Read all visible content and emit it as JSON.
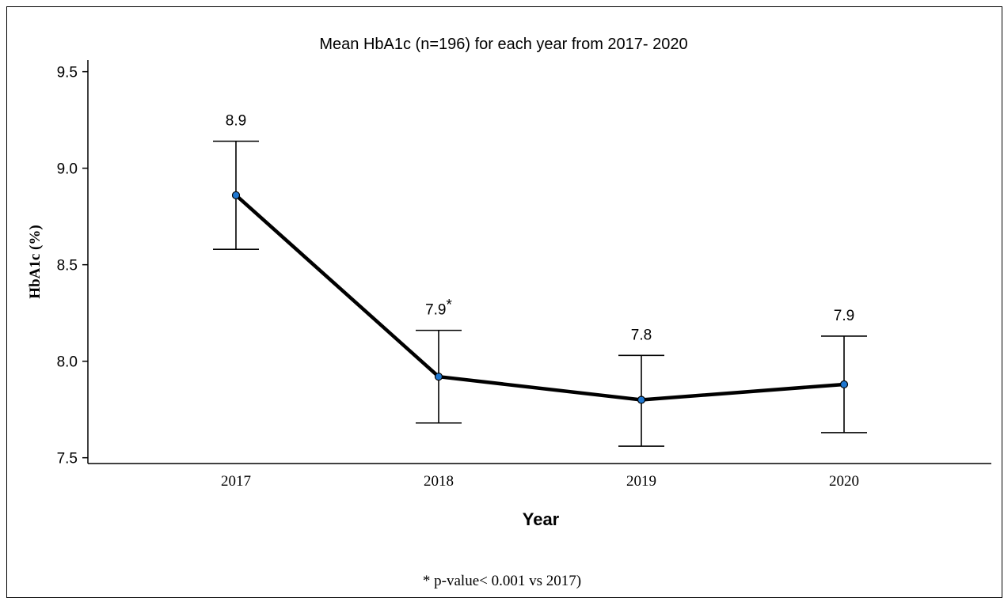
{
  "chart_data": {
    "type": "line",
    "title": "Mean HbA1c (n=196) for each year from 2017- 2020",
    "xlabel": "Year",
    "ylabel": "HbA1c (%)",
    "categories": [
      "2017",
      "2018",
      "2019",
      "2020"
    ],
    "values": [
      8.86,
      7.92,
      7.8,
      7.88
    ],
    "error_low": [
      8.58,
      7.68,
      7.56,
      7.63
    ],
    "error_high": [
      9.14,
      8.16,
      8.03,
      8.13
    ],
    "data_labels": [
      "8.9",
      "7.9",
      "7.8",
      "7.9"
    ],
    "data_label_marks": [
      "",
      "*",
      "",
      ""
    ],
    "ylim": [
      7.47,
      9.56
    ],
    "yticks": [
      "7.5",
      "8.0",
      "8.5",
      "9.0",
      "9.5"
    ],
    "grid": false,
    "marker_color": "#1f77d0",
    "line_color": "#000000",
    "footnote": "* p-value< 0.001 vs 2017)"
  }
}
